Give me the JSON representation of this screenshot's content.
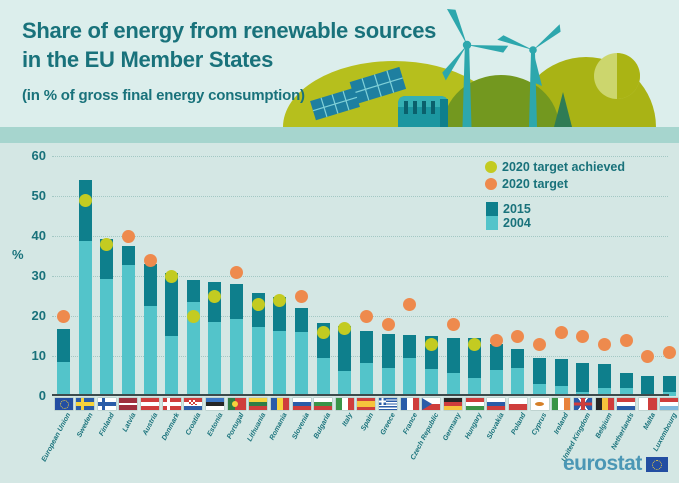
{
  "header": {
    "title_line1": "Share of energy from renewable sources",
    "title_line2": "in the EU Member States",
    "subtitle": "(in % of gross final energy consumption)"
  },
  "legend": {
    "target_achieved_label": "2020 target achieved",
    "target_label": "2020 target",
    "series_2015_label": "2015",
    "series_2004_label": "2004"
  },
  "footer": {
    "logo_text": "eurostat"
  },
  "colors": {
    "bar_2015": "#0e7f8c",
    "bar_2004": "#53c4ca",
    "dot_2020_target": "#ee8a4d",
    "dot_2020_achieved": "#c3cb21",
    "text_teal": "#19727b",
    "header_bg": "#dceeec",
    "chart_bg": "#d4e7e4",
    "ground_strip": "#a6d5ce",
    "hill_olive": "#b6bf1d",
    "logo_blue": "#4b97b5"
  },
  "illustration_icons": [
    "wind-turbine-icon",
    "solar-panel-icon",
    "hydro-dam-icon",
    "tree-icon",
    "hills"
  ],
  "chart_data": {
    "type": "bar",
    "title": "Share of energy from renewable sources in the EU Member States",
    "subtitle": "in % of gross final energy consumption",
    "ylabel": "%",
    "ylim": [
      0,
      60
    ],
    "yticks": [
      0,
      10,
      20,
      30,
      40,
      50,
      60
    ],
    "grid": "horizontal-dotted",
    "legend_position": "top-right",
    "series_labels": {
      "dark_bar": "2015",
      "light_bar": "2004",
      "orange_dot": "2020 target",
      "green_dot": "2020 target achieved"
    },
    "countries": [
      {
        "name": "European Union",
        "y2004": 8.5,
        "y2015": 16.7,
        "target": 20,
        "achieved": false,
        "flag": {
          "type": "eu",
          "bg": "#234ea2",
          "stars": "#f6d33c"
        }
      },
      {
        "name": "Sweden",
        "y2004": 38.7,
        "y2015": 53.9,
        "target": 49,
        "achieved": true,
        "flag": {
          "type": "nordic",
          "bg": "#2a5ca8",
          "cross": "#f6d33c"
        }
      },
      {
        "name": "Finland",
        "y2004": 29.2,
        "y2015": 39.3,
        "target": 38,
        "achieved": true,
        "flag": {
          "type": "nordic",
          "bg": "#ffffff",
          "cross": "#2a5ca8"
        }
      },
      {
        "name": "Latvia",
        "y2004": 32.8,
        "y2015": 37.6,
        "target": 40,
        "achieved": false,
        "flag": {
          "type": "stripes",
          "dir": "h",
          "colors": [
            "#9e2f3e",
            "#ffffff",
            "#9e2f3e"
          ],
          "weights": [
            2,
            1,
            2
          ]
        }
      },
      {
        "name": "Austria",
        "y2004": 22.6,
        "y2015": 33.0,
        "target": 34,
        "achieved": false,
        "flag": {
          "type": "stripes",
          "dir": "h",
          "colors": [
            "#cf3d3c",
            "#ffffff",
            "#cf3d3c"
          ]
        }
      },
      {
        "name": "Denmark",
        "y2004": 14.9,
        "y2015": 30.8,
        "target": 30,
        "achieved": true,
        "flag": {
          "type": "nordic",
          "bg": "#cf3d3c",
          "cross": "#ffffff"
        }
      },
      {
        "name": "Croatia",
        "y2004": 23.5,
        "y2015": 29.0,
        "target": 20,
        "achieved": true,
        "flag": {
          "type": "croatia",
          "colors": [
            "#cf3d3c",
            "#ffffff",
            "#2a5ca8"
          ],
          "check1": "#cf3d3c",
          "check2": "#ffffff"
        }
      },
      {
        "name": "Estonia",
        "y2004": 18.4,
        "y2015": 28.6,
        "target": 25,
        "achieved": true,
        "flag": {
          "type": "stripes",
          "dir": "h",
          "colors": [
            "#3a75c4",
            "#262626",
            "#ffffff"
          ]
        }
      },
      {
        "name": "Portugal",
        "y2004": 19.2,
        "y2015": 28.0,
        "target": 31,
        "achieved": false,
        "flag": {
          "type": "portugal",
          "green": "#2e7d46",
          "red": "#cf3d3c",
          "emblem": "#f6d33c"
        }
      },
      {
        "name": "Lithuania",
        "y2004": 17.2,
        "y2015": 25.8,
        "target": 23,
        "achieved": true,
        "flag": {
          "type": "stripes",
          "dir": "h",
          "colors": [
            "#f6d33c",
            "#2e7d46",
            "#cf3d3c"
          ]
        }
      },
      {
        "name": "Romania",
        "y2004": 16.3,
        "y2015": 24.8,
        "target": 24,
        "achieved": true,
        "flag": {
          "type": "stripes",
          "dir": "v",
          "colors": [
            "#2a5ca8",
            "#f6d33c",
            "#cf3d3c"
          ]
        }
      },
      {
        "name": "Slovenia",
        "y2004": 16.1,
        "y2015": 22.0,
        "target": 25,
        "achieved": false,
        "flag": {
          "type": "stripes",
          "dir": "h",
          "colors": [
            "#ffffff",
            "#2a5ca8",
            "#cf3d3c"
          ]
        }
      },
      {
        "name": "Bulgaria",
        "y2004": 9.4,
        "y2015": 18.2,
        "target": 16,
        "achieved": true,
        "flag": {
          "type": "stripes",
          "dir": "h",
          "colors": [
            "#ffffff",
            "#3a9448",
            "#cf3d3c"
          ]
        }
      },
      {
        "name": "Italy",
        "y2004": 6.3,
        "y2015": 17.5,
        "target": 17,
        "achieved": true,
        "flag": {
          "type": "stripes",
          "dir": "v",
          "colors": [
            "#3a9448",
            "#ffffff",
            "#cf3d3c"
          ]
        }
      },
      {
        "name": "Spain",
        "y2004": 8.3,
        "y2015": 16.2,
        "target": 20,
        "achieved": false,
        "flag": {
          "type": "stripes",
          "dir": "h",
          "colors": [
            "#cf3d3c",
            "#f6c33c",
            "#cf3d3c"
          ],
          "weights": [
            1,
            2,
            1
          ]
        }
      },
      {
        "name": "Greece",
        "y2004": 6.9,
        "y2015": 15.4,
        "target": 18,
        "achieved": false,
        "flag": {
          "type": "greece",
          "blue": "#2a5ca8",
          "white": "#ffffff"
        }
      },
      {
        "name": "France",
        "y2004": 9.5,
        "y2015": 15.2,
        "target": 23,
        "achieved": false,
        "flag": {
          "type": "stripes",
          "dir": "v",
          "colors": [
            "#2a5ca8",
            "#ffffff",
            "#cf3d3c"
          ]
        }
      },
      {
        "name": "Czech Republic",
        "y2004": 6.8,
        "y2015": 15.1,
        "target": 13,
        "achieved": true,
        "flag": {
          "type": "czech",
          "white": "#ffffff",
          "red": "#cf3d3c",
          "blue": "#2a5ca8"
        }
      },
      {
        "name": "Germany",
        "y2004": 5.8,
        "y2015": 14.6,
        "target": 18,
        "achieved": false,
        "flag": {
          "type": "stripes",
          "dir": "h",
          "colors": [
            "#262626",
            "#cf3d3c",
            "#f6c33c"
          ]
        }
      },
      {
        "name": "Hungary",
        "y2004": 4.4,
        "y2015": 14.5,
        "target": 13,
        "achieved": true,
        "flag": {
          "type": "stripes",
          "dir": "h",
          "colors": [
            "#cf3d3c",
            "#ffffff",
            "#3a9448"
          ]
        }
      },
      {
        "name": "Slovakia",
        "y2004": 6.4,
        "y2015": 12.9,
        "target": 14,
        "achieved": false,
        "flag": {
          "type": "stripes",
          "dir": "h",
          "colors": [
            "#ffffff",
            "#2a5ca8",
            "#cf3d3c"
          ]
        }
      },
      {
        "name": "Poland",
        "y2004": 6.9,
        "y2015": 11.8,
        "target": 15,
        "achieved": false,
        "flag": {
          "type": "stripes",
          "dir": "h",
          "colors": [
            "#ffffff",
            "#cf3d3c"
          ]
        }
      },
      {
        "name": "Cyprus",
        "y2004": 3.1,
        "y2015": 9.4,
        "target": 13,
        "achieved": false,
        "flag": {
          "type": "cyprus",
          "bg": "#ffffff",
          "island": "#d57f28"
        }
      },
      {
        "name": "Ireland",
        "y2004": 2.4,
        "y2015": 9.2,
        "target": 16,
        "achieved": false,
        "flag": {
          "type": "stripes",
          "dir": "v",
          "colors": [
            "#3a9448",
            "#ffffff",
            "#e8823c"
          ]
        }
      },
      {
        "name": "United Kingdom",
        "y2004": 1.1,
        "y2015": 8.2,
        "target": 15,
        "achieved": false,
        "flag": {
          "type": "uk",
          "blue": "#2a5ca8",
          "white": "#ffffff",
          "red": "#cf3d3c"
        }
      },
      {
        "name": "Belgium",
        "y2004": 1.9,
        "y2015": 7.9,
        "target": 13,
        "achieved": false,
        "flag": {
          "type": "stripes",
          "dir": "v",
          "colors": [
            "#262626",
            "#f6c33c",
            "#cf3d3c"
          ]
        }
      },
      {
        "name": "Netherlands",
        "y2004": 2.0,
        "y2015": 5.8,
        "target": 14,
        "achieved": false,
        "flag": {
          "type": "stripes",
          "dir": "h",
          "colors": [
            "#cf3d3c",
            "#ffffff",
            "#2a5ca8"
          ]
        }
      },
      {
        "name": "Malta",
        "y2004": 0.1,
        "y2015": 5.0,
        "target": 10,
        "achieved": false,
        "flag": {
          "type": "stripes",
          "dir": "v",
          "colors": [
            "#ffffff",
            "#cf3d3c"
          ]
        }
      },
      {
        "name": "Luxembourg",
        "y2004": 0.9,
        "y2015": 5.0,
        "target": 11,
        "achieved": false,
        "flag": {
          "type": "stripes",
          "dir": "h",
          "colors": [
            "#cf3d3c",
            "#ffffff",
            "#7fb9dd"
          ]
        }
      }
    ]
  }
}
